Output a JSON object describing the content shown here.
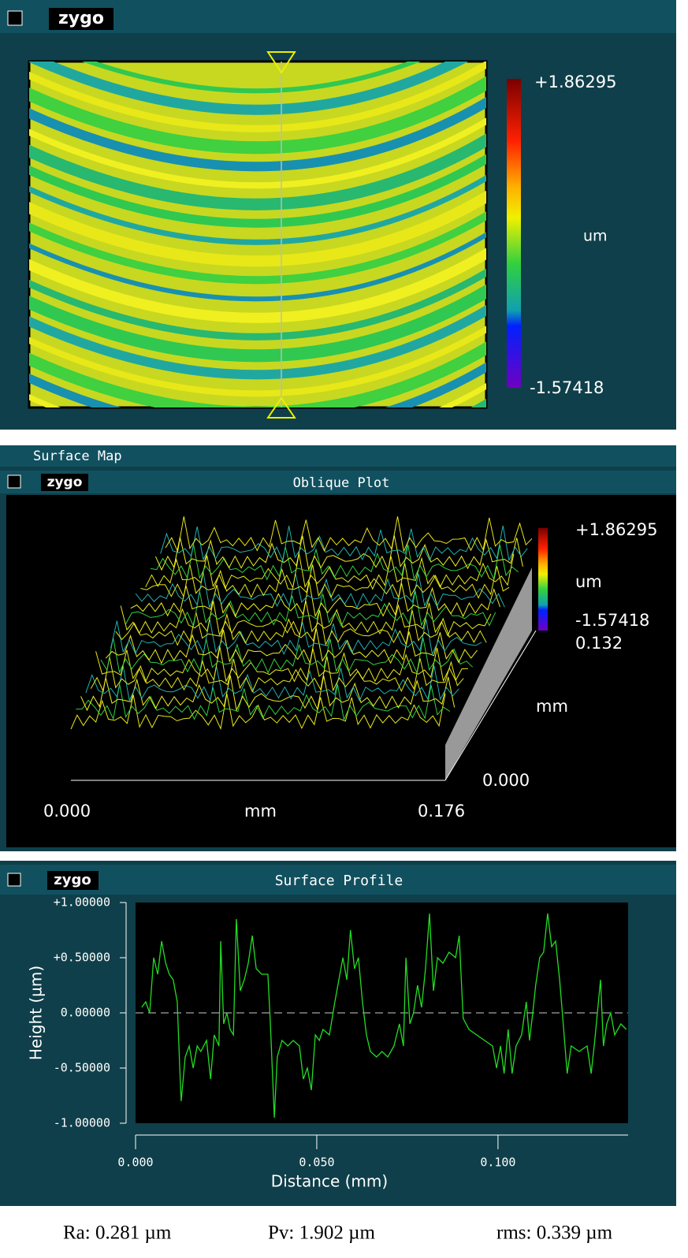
{
  "map_window": {
    "logo": "zygo",
    "colorbar": {
      "max": "+1.86295",
      "unit": "um",
      "min": "-1.57418"
    }
  },
  "oblique_window": {
    "parent_title": "Surface Map",
    "logo": "zygo",
    "title": "Oblique Plot",
    "colorbar": {
      "max": "+1.86295",
      "unit": "um",
      "min": "-1.57418"
    },
    "x_axis": {
      "start": "0.000",
      "unit": "mm",
      "end": "0.176"
    },
    "y_axis": {
      "end": "0.132",
      "unit": "mm",
      "start": "0.000"
    }
  },
  "profile_window": {
    "logo": "zygo",
    "title": "Surface Profile"
  },
  "chart_data": {
    "type": "line",
    "xlabel": "Distance (mm)",
    "ylabel": "Height (µm)",
    "xlim": [
      0,
      0.1359
    ],
    "ylim": [
      -1,
      1
    ],
    "xticks": [
      {
        "value": 0,
        "label": "0.000"
      },
      {
        "value": 0.05,
        "label": "0.050"
      },
      {
        "value": 0.1,
        "label": "0.100"
      }
    ],
    "yticks": [
      {
        "value": 1,
        "label": "+1.00000"
      },
      {
        "value": 0.5,
        "label": "+0.50000"
      },
      {
        "value": 0,
        "label": "0.00000"
      },
      {
        "value": -0.5,
        "label": "-0.50000"
      },
      {
        "value": -1,
        "label": "-1.00000"
      }
    ],
    "zero_line": true,
    "series": [
      {
        "color": "#22dd22",
        "x": [
          0.0017,
          0.0028,
          0.0039,
          0.005,
          0.0061,
          0.0072,
          0.0083,
          0.0093,
          0.0104,
          0.0115,
          0.0122,
          0.0126,
          0.0137,
          0.0148,
          0.0159,
          0.017,
          0.018,
          0.0196,
          0.0207,
          0.0217,
          0.023,
          0.0235,
          0.0243,
          0.0252,
          0.0261,
          0.027,
          0.0278,
          0.0289,
          0.03,
          0.0311,
          0.0322,
          0.0333,
          0.0348,
          0.0365,
          0.0372,
          0.0383,
          0.0391,
          0.0404,
          0.042,
          0.0435,
          0.0452,
          0.0463,
          0.0474,
          0.0485,
          0.0496,
          0.0507,
          0.0517,
          0.0535,
          0.055,
          0.0561,
          0.0572,
          0.0583,
          0.0593,
          0.0604,
          0.0615,
          0.0626,
          0.0637,
          0.0648,
          0.0665,
          0.068,
          0.0696,
          0.0713,
          0.0728,
          0.0739,
          0.0746,
          0.0757,
          0.0767,
          0.0778,
          0.0789,
          0.08,
          0.0811,
          0.0822,
          0.0833,
          0.0848,
          0.0865,
          0.0883,
          0.0893,
          0.0904,
          0.092,
          0.0941,
          0.0963,
          0.0985,
          0.0996,
          0.1007,
          0.1017,
          0.1028,
          0.1039,
          0.105,
          0.1065,
          0.1078,
          0.1087,
          0.1096,
          0.1104,
          0.1115,
          0.1126,
          0.1137,
          0.1148,
          0.1159,
          0.117,
          0.118,
          0.1191,
          0.1202,
          0.1224,
          0.1246,
          0.1257,
          0.1267,
          0.1283,
          0.1291,
          0.13,
          0.1311,
          0.1322,
          0.1339,
          0.1354
        ],
        "values": [
          0.05,
          0.1,
          0.0,
          0.5,
          0.35,
          0.65,
          0.45,
          0.35,
          0.3,
          0.1,
          -0.5,
          -0.8,
          -0.4,
          -0.3,
          -0.5,
          -0.3,
          -0.35,
          -0.25,
          -0.6,
          -0.2,
          -0.3,
          0.65,
          -0.1,
          0.0,
          -0.15,
          -0.2,
          0.85,
          0.2,
          0.3,
          0.45,
          0.7,
          0.4,
          0.35,
          0.35,
          -0.1,
          -0.95,
          -0.4,
          -0.25,
          -0.3,
          -0.25,
          -0.3,
          -0.6,
          -0.5,
          -0.7,
          -0.2,
          -0.25,
          -0.15,
          -0.2,
          0.1,
          0.3,
          0.5,
          0.3,
          0.75,
          0.4,
          0.5,
          0.1,
          -0.2,
          -0.35,
          -0.4,
          -0.35,
          -0.4,
          -0.3,
          -0.1,
          -0.3,
          0.5,
          -0.1,
          0.0,
          0.25,
          0.05,
          0.4,
          0.9,
          0.2,
          0.5,
          0.45,
          0.55,
          0.5,
          0.7,
          -0.05,
          -0.15,
          -0.2,
          -0.25,
          -0.3,
          -0.5,
          -0.3,
          -0.55,
          -0.15,
          -0.55,
          -0.3,
          -0.2,
          0.1,
          -0.25,
          0.0,
          0.25,
          0.5,
          0.55,
          0.9,
          0.6,
          0.65,
          0.3,
          -0.1,
          -0.55,
          -0.3,
          -0.35,
          -0.3,
          -0.55,
          -0.25,
          0.3,
          -0.3,
          -0.1,
          0.0,
          -0.2,
          -0.1,
          -0.15
        ]
      }
    ]
  },
  "stats": [
    "Ra: 0.281 µm",
    "Pv: 1.902 µm",
    "rms: 0.339 µm"
  ]
}
